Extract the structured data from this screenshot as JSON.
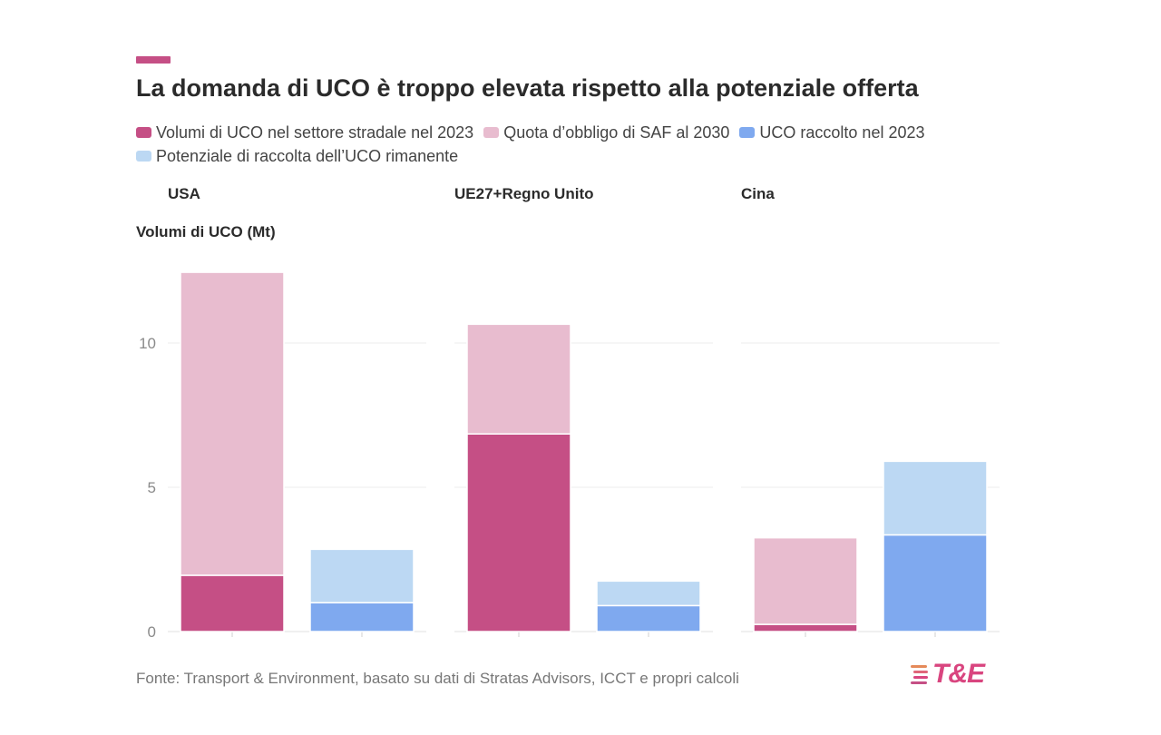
{
  "header": {
    "title": "La domanda di UCO è troppo elevata rispetto alla potenziale offerta"
  },
  "legend": [
    {
      "label": "Volumi di UCO nel settore stradale nel 2023",
      "color": "#c54f85"
    },
    {
      "label": "Quota d’obbligo di SAF al 2030",
      "color": "#e8bccf"
    },
    {
      "label": "UCO raccolto nel 2023",
      "color": "#7fa9ef"
    },
    {
      "label": "Potenziale di raccolta dell’UCO rimanente",
      "color": "#bcd8f3"
    }
  ],
  "footer": {
    "source": "Fonte: Transport & Environment, basato su dati di Stratas Advisors, ICCT e propri calcoli",
    "logo_text": "T&E",
    "logo_icon": "te-stripes-icon"
  },
  "chart_data": {
    "type": "bar",
    "stacked": true,
    "ylabel": "Volumi di UCO (Mt)",
    "ylim": [
      0,
      13
    ],
    "yticks": [
      0,
      5,
      10
    ],
    "grid": true,
    "panels": [
      {
        "name": "USA",
        "bars": [
          {
            "segments": [
              {
                "series": "Volumi di UCO nel settore stradale nel 2023",
                "value": 1.95
              },
              {
                "series": "Quota d’obbligo di SAF al 2030",
                "value": 10.5
              }
            ]
          },
          {
            "segments": [
              {
                "series": "UCO raccolto nel 2023",
                "value": 1.0
              },
              {
                "series": "Potenziale di raccolta dell’UCO rimanente",
                "value": 1.85
              }
            ]
          }
        ]
      },
      {
        "name": "UE27+Regno Unito",
        "bars": [
          {
            "segments": [
              {
                "series": "Volumi di UCO nel settore stradale nel 2023",
                "value": 6.85
              },
              {
                "series": "Quota d’obbligo di SAF al 2030",
                "value": 3.8
              }
            ]
          },
          {
            "segments": [
              {
                "series": "UCO raccolto nel 2023",
                "value": 0.9
              },
              {
                "series": "Potenziale di raccolta dell’UCO rimanente",
                "value": 0.85
              }
            ]
          }
        ]
      },
      {
        "name": "Cina",
        "bars": [
          {
            "segments": [
              {
                "series": "Volumi di UCO nel settore stradale nel 2023",
                "value": 0.25
              },
              {
                "series": "Quota d’obbligo di SAF al 2030",
                "value": 3.0
              }
            ]
          },
          {
            "segments": [
              {
                "series": "UCO raccolto nel 2023",
                "value": 3.35
              },
              {
                "series": "Potenziale di raccolta dell’UCO rimanente",
                "value": 2.55
              }
            ]
          }
        ]
      }
    ]
  }
}
